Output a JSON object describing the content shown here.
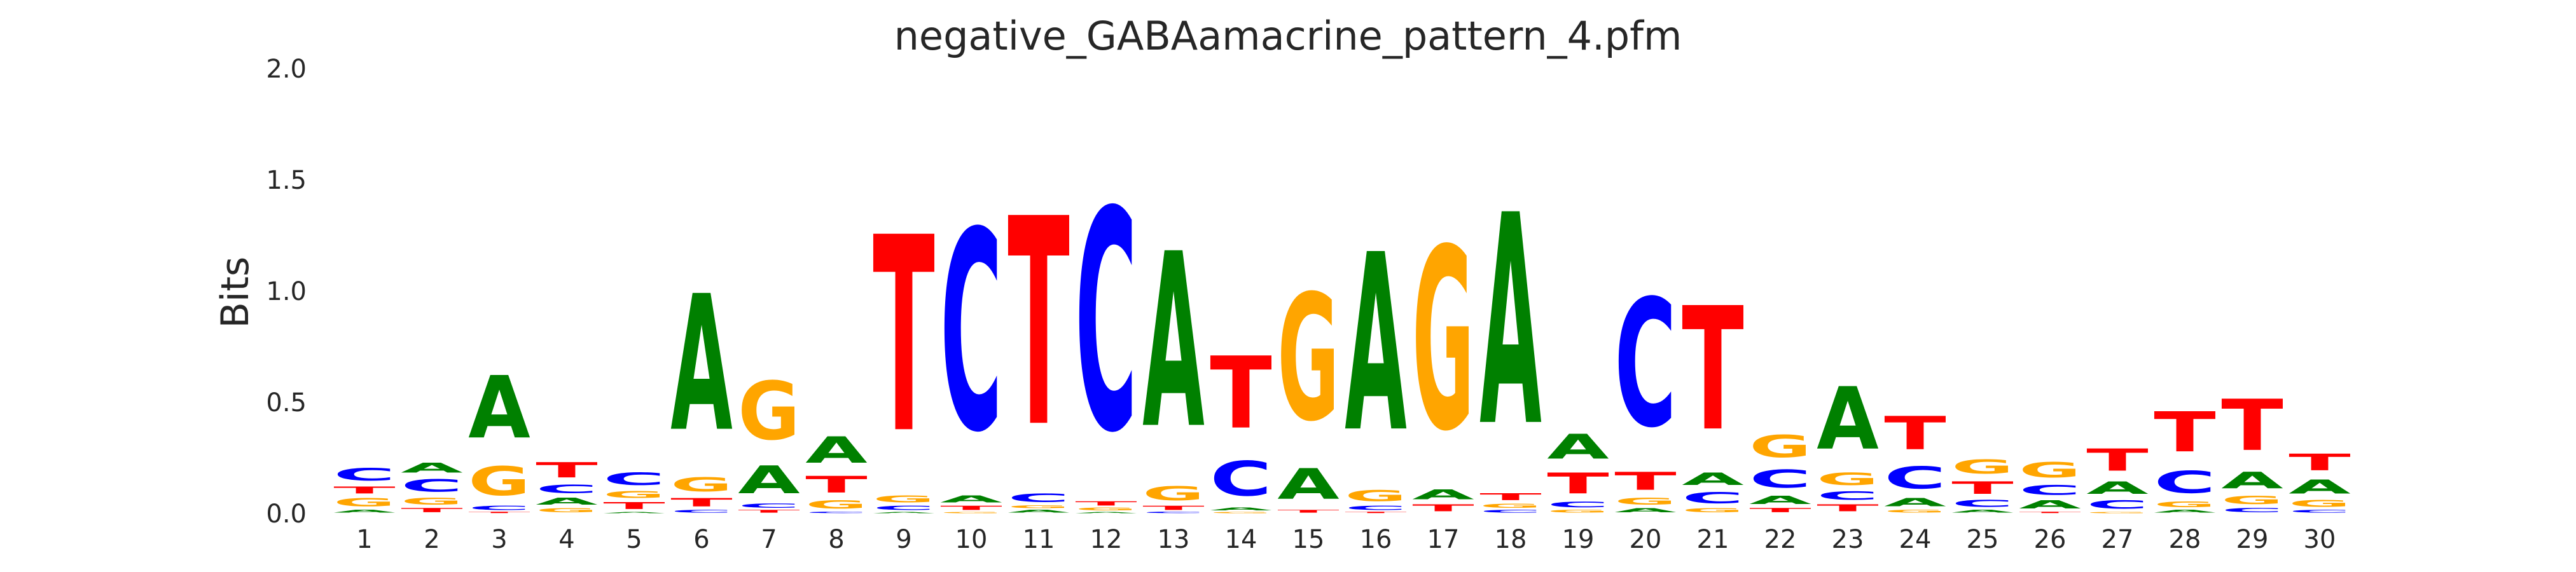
{
  "chart_data": {
    "type": "sequence-logo",
    "title": "negative_GABAamacrine_pattern_4.pfm",
    "xlabel": "",
    "ylabel": "Bits",
    "ylim": [
      0,
      2.0
    ],
    "yticks": [
      "0.0",
      "0.5",
      "1.0",
      "1.5",
      "2.0"
    ],
    "grid": false,
    "legend": "none",
    "colors": {
      "A": "#008000",
      "C": "#0000ff",
      "G": "#ffa500",
      "T": "#ff0000"
    },
    "positions": [
      {
        "label": "1",
        "stack": [
          {
            "base": "A",
            "bits": 0.02
          },
          {
            "base": "G",
            "bits": 0.06
          },
          {
            "base": "T",
            "bits": 0.05
          },
          {
            "base": "C",
            "bits": 0.09
          }
        ]
      },
      {
        "label": "2",
        "stack": [
          {
            "base": "T",
            "bits": 0.03
          },
          {
            "base": "G",
            "bits": 0.05
          },
          {
            "base": "C",
            "bits": 0.09
          },
          {
            "base": "A",
            "bits": 0.07
          }
        ]
      },
      {
        "label": "3",
        "stack": [
          {
            "base": "T",
            "bits": 0.01
          },
          {
            "base": "C",
            "bits": 0.03
          },
          {
            "base": "G",
            "bits": 0.21
          },
          {
            "base": "A",
            "bits": 0.45
          }
        ]
      },
      {
        "label": "4",
        "stack": [
          {
            "base": "G",
            "bits": 0.03
          },
          {
            "base": "A",
            "bits": 0.05
          },
          {
            "base": "C",
            "bits": 0.06
          },
          {
            "base": "T",
            "bits": 0.11
          }
        ]
      },
      {
        "label": "5",
        "stack": [
          {
            "base": "A",
            "bits": 0.01
          },
          {
            "base": "T",
            "bits": 0.05
          },
          {
            "base": "G",
            "bits": 0.05
          },
          {
            "base": "C",
            "bits": 0.09
          }
        ]
      },
      {
        "label": "6",
        "stack": [
          {
            "base": "C",
            "bits": 0.02
          },
          {
            "base": "T",
            "bits": 0.06
          },
          {
            "base": "G",
            "bits": 0.1
          },
          {
            "base": "A",
            "bits": 0.98
          }
        ]
      },
      {
        "label": "7",
        "stack": [
          {
            "base": "T",
            "bits": 0.02
          },
          {
            "base": "C",
            "bits": 0.03
          },
          {
            "base": "A",
            "bits": 0.2
          },
          {
            "base": "G",
            "bits": 0.42
          }
        ]
      },
      {
        "label": "8",
        "stack": [
          {
            "base": "C",
            "bits": 0.01
          },
          {
            "base": "G",
            "bits": 0.06
          },
          {
            "base": "T",
            "bits": 0.12
          },
          {
            "base": "A",
            "bits": 0.19
          }
        ]
      },
      {
        "label": "9",
        "stack": [
          {
            "base": "A",
            "bits": 0.01
          },
          {
            "base": "C",
            "bits": 0.03
          },
          {
            "base": "G",
            "bits": 0.05
          },
          {
            "base": "T",
            "bits": 1.41
          }
        ]
      },
      {
        "label": "10",
        "stack": [
          {
            "base": "G",
            "bits": 0.01
          },
          {
            "base": "T",
            "bits": 0.03
          },
          {
            "base": "A",
            "bits": 0.05
          },
          {
            "base": "C",
            "bits": 1.44
          }
        ]
      },
      {
        "label": "11",
        "stack": [
          {
            "base": "A",
            "bits": 0.02
          },
          {
            "base": "G",
            "bits": 0.02
          },
          {
            "base": "C",
            "bits": 0.06
          },
          {
            "base": "T",
            "bits": 1.5
          }
        ]
      },
      {
        "label": "12",
        "stack": [
          {
            "base": "A",
            "bits": 0.01
          },
          {
            "base": "G",
            "bits": 0.02
          },
          {
            "base": "T",
            "bits": 0.03
          },
          {
            "base": "C",
            "bits": 1.59
          }
        ]
      },
      {
        "label": "13",
        "stack": [
          {
            "base": "C",
            "bits": 0.01
          },
          {
            "base": "T",
            "bits": 0.03
          },
          {
            "base": "G",
            "bits": 0.1
          },
          {
            "base": "A",
            "bits": 1.26
          }
        ]
      },
      {
        "label": "14",
        "stack": [
          {
            "base": "G",
            "bits": 0.01
          },
          {
            "base": "A",
            "bits": 0.02
          },
          {
            "base": "C",
            "bits": 0.25
          },
          {
            "base": "T",
            "bits": 0.52
          }
        ]
      },
      {
        "label": "15",
        "stack": [
          {
            "base": "T",
            "bits": 0.02
          },
          {
            "base": "A",
            "bits": 0.22
          },
          {
            "base": "G",
            "bits": 0.91
          }
        ]
      },
      {
        "label": "16",
        "stack": [
          {
            "base": "T",
            "bits": 0.01
          },
          {
            "base": "C",
            "bits": 0.03
          },
          {
            "base": "G",
            "bits": 0.08
          },
          {
            "base": "A",
            "bits": 1.28
          }
        ]
      },
      {
        "label": "17",
        "stack": [
          {
            "base": "T",
            "bits": 0.05
          },
          {
            "base": "A",
            "bits": 0.07
          },
          {
            "base": "G",
            "bits": 1.31
          }
        ]
      },
      {
        "label": "18",
        "stack": [
          {
            "base": "C",
            "bits": 0.02
          },
          {
            "base": "G",
            "bits": 0.03
          },
          {
            "base": "T",
            "bits": 0.05
          },
          {
            "base": "A",
            "bits": 1.52
          }
        ]
      },
      {
        "label": "19",
        "stack": [
          {
            "base": "G",
            "bits": 0.02
          },
          {
            "base": "C",
            "bits": 0.04
          },
          {
            "base": "T",
            "bits": 0.15
          },
          {
            "base": "A",
            "bits": 0.18
          }
        ]
      },
      {
        "label": "20",
        "stack": [
          {
            "base": "A",
            "bits": 0.03
          },
          {
            "base": "G",
            "bits": 0.05
          },
          {
            "base": "T",
            "bits": 0.13
          },
          {
            "base": "C",
            "bits": 0.92
          }
        ]
      },
      {
        "label": "21",
        "stack": [
          {
            "base": "G",
            "bits": 0.03
          },
          {
            "base": "C",
            "bits": 0.08
          },
          {
            "base": "A",
            "bits": 0.09
          },
          {
            "base": "T",
            "bits": 0.89
          }
        ]
      },
      {
        "label": "22",
        "stack": [
          {
            "base": "T",
            "bits": 0.03
          },
          {
            "base": "A",
            "bits": 0.06
          },
          {
            "base": "C",
            "bits": 0.13
          },
          {
            "base": "G",
            "bits": 0.16
          }
        ]
      },
      {
        "label": "23",
        "stack": [
          {
            "base": "T",
            "bits": 0.05
          },
          {
            "base": "C",
            "bits": 0.06
          },
          {
            "base": "G",
            "bits": 0.09
          },
          {
            "base": "A",
            "bits": 0.45
          }
        ]
      },
      {
        "label": "24",
        "stack": [
          {
            "base": "G",
            "bits": 0.02
          },
          {
            "base": "A",
            "bits": 0.06
          },
          {
            "base": "C",
            "bits": 0.16
          },
          {
            "base": "T",
            "bits": 0.24
          }
        ]
      },
      {
        "label": "25",
        "stack": [
          {
            "base": "A",
            "bits": 0.02
          },
          {
            "base": "C",
            "bits": 0.05
          },
          {
            "base": "T",
            "bits": 0.09
          },
          {
            "base": "G",
            "bits": 0.1
          }
        ]
      },
      {
        "label": "26",
        "stack": [
          {
            "base": "T",
            "bits": 0.01
          },
          {
            "base": "A",
            "bits": 0.06
          },
          {
            "base": "C",
            "bits": 0.07
          },
          {
            "base": "G",
            "bits": 0.11
          }
        ]
      },
      {
        "label": "27",
        "stack": [
          {
            "base": "G",
            "bits": 0.01
          },
          {
            "base": "C",
            "bits": 0.06
          },
          {
            "base": "A",
            "bits": 0.09
          },
          {
            "base": "T",
            "bits": 0.16
          }
        ]
      },
      {
        "label": "28",
        "stack": [
          {
            "base": "A",
            "bits": 0.02
          },
          {
            "base": "G",
            "bits": 0.04
          },
          {
            "base": "C",
            "bits": 0.16
          },
          {
            "base": "T",
            "bits": 0.29
          }
        ]
      },
      {
        "label": "29",
        "stack": [
          {
            "base": "C",
            "bits": 0.03
          },
          {
            "base": "G",
            "bits": 0.06
          },
          {
            "base": "A",
            "bits": 0.12
          },
          {
            "base": "T",
            "bits": 0.37
          }
        ]
      },
      {
        "label": "30",
        "stack": [
          {
            "base": "C",
            "bits": 0.02
          },
          {
            "base": "G",
            "bits": 0.05
          },
          {
            "base": "A",
            "bits": 0.1
          },
          {
            "base": "T",
            "bits": 0.12
          }
        ]
      }
    ]
  }
}
